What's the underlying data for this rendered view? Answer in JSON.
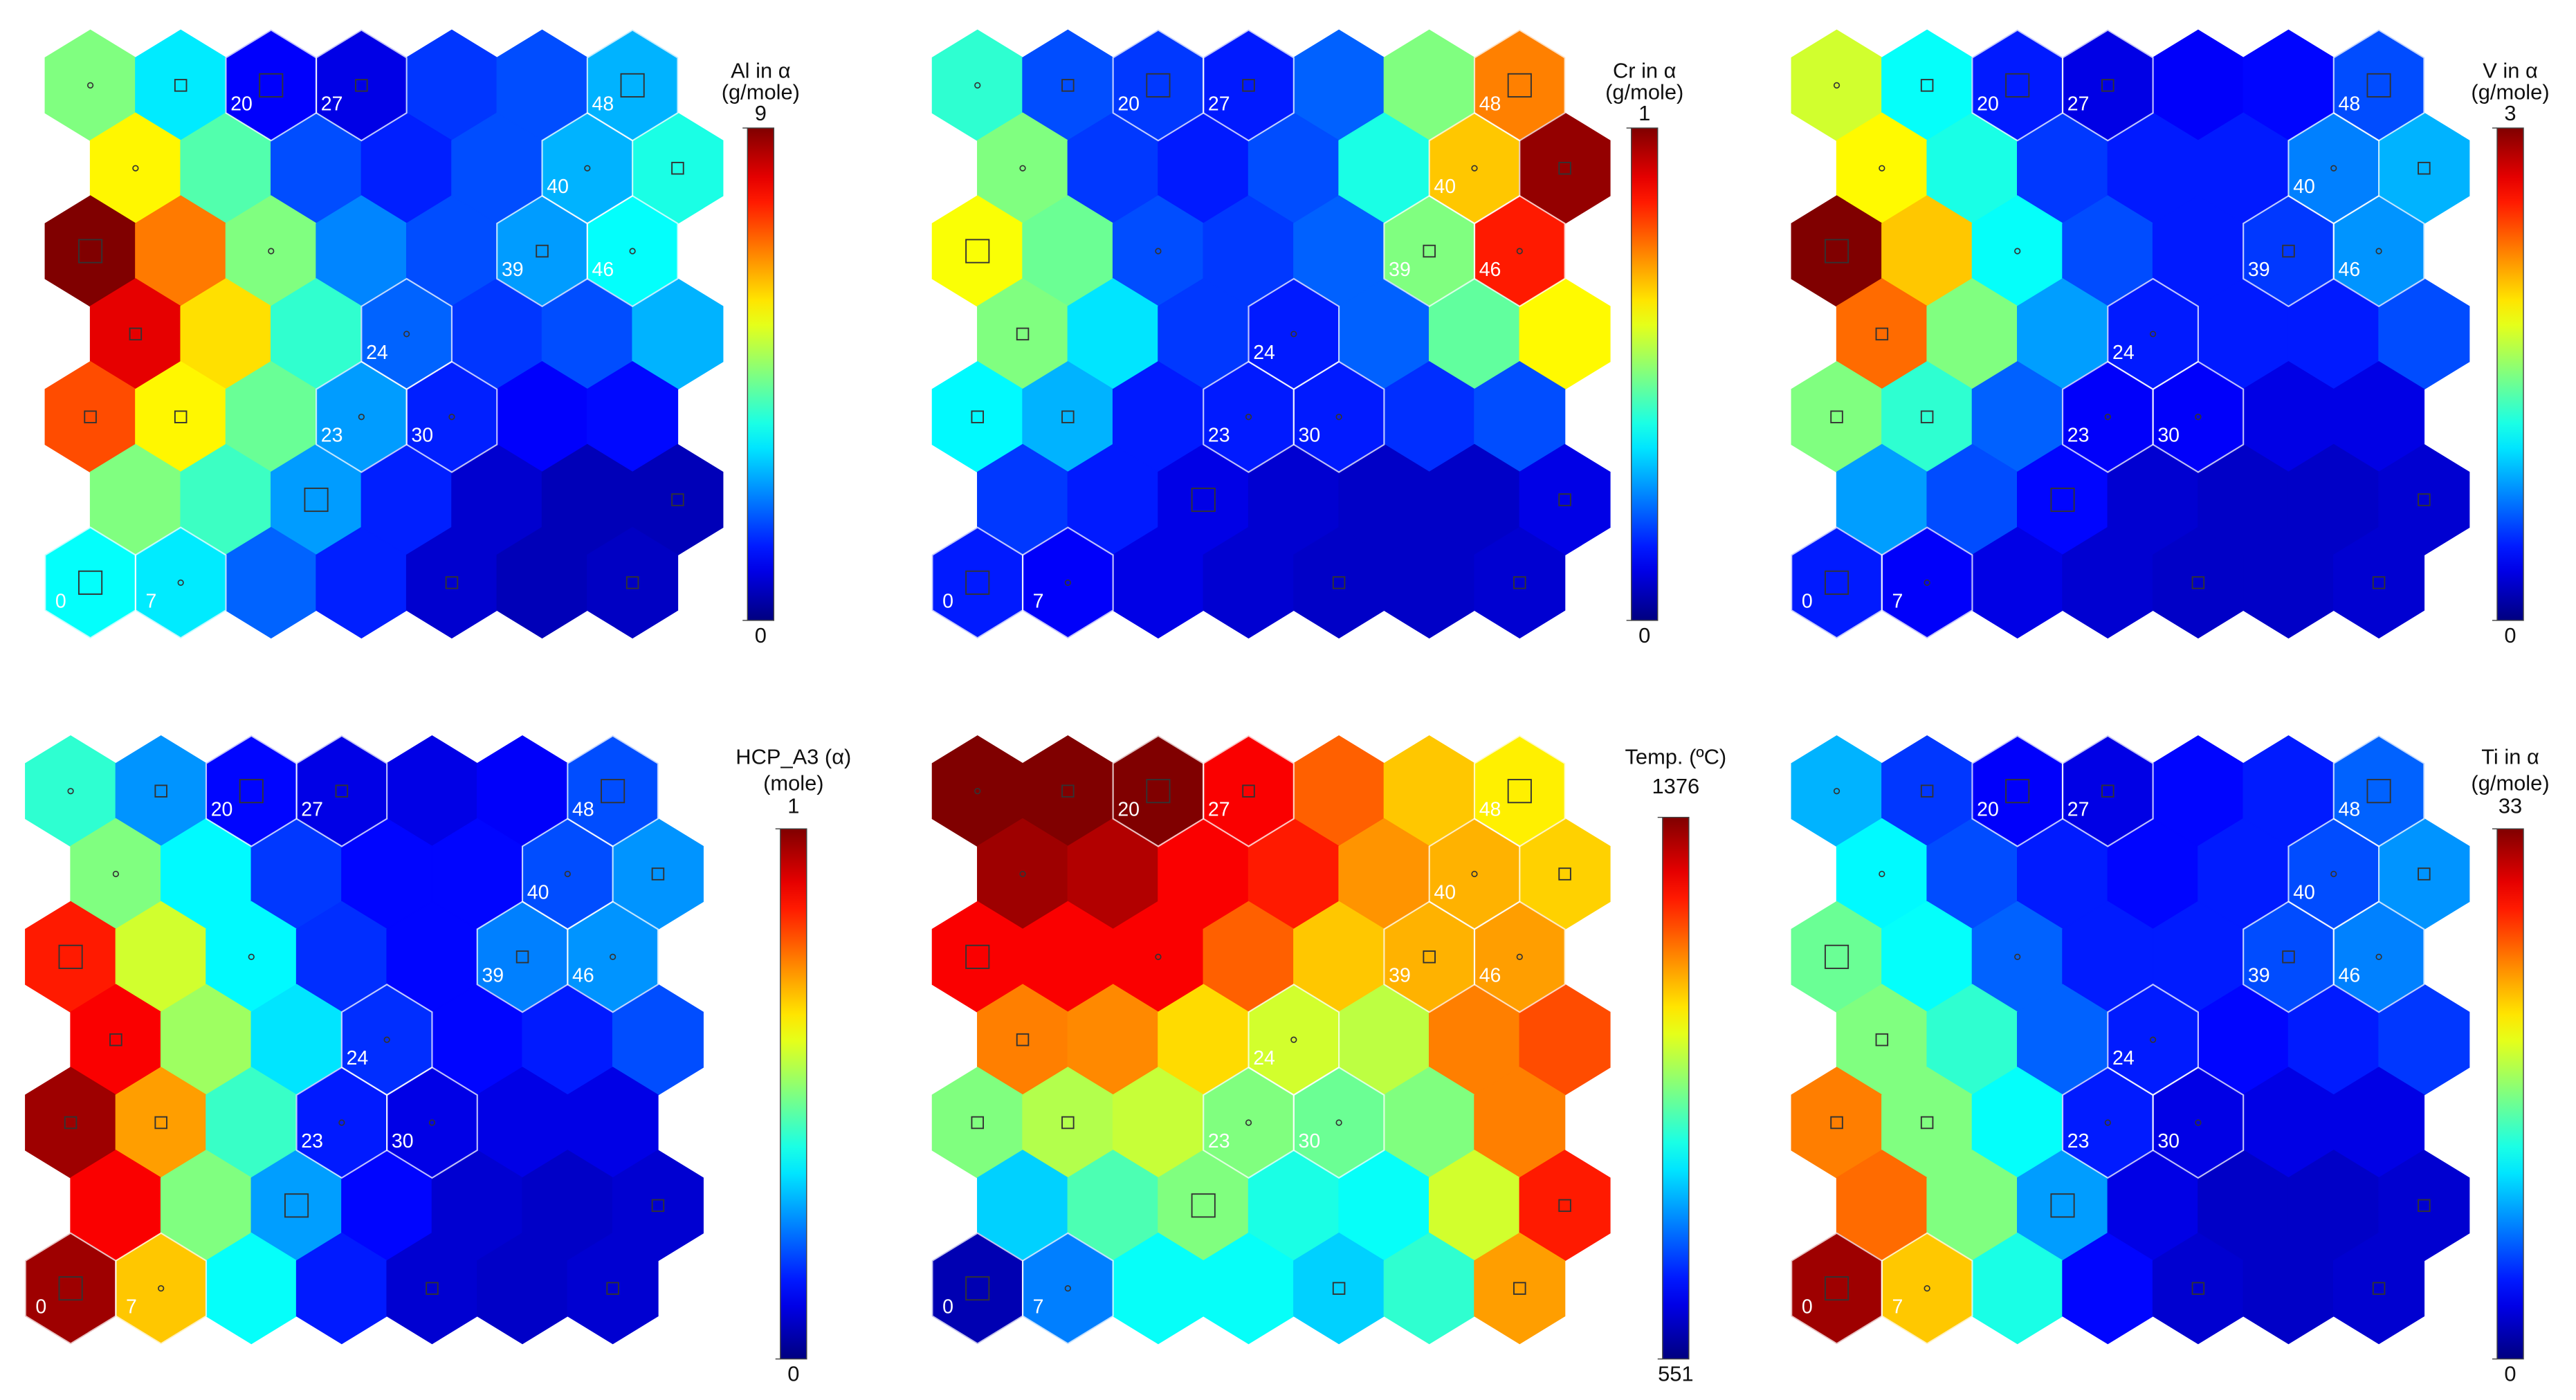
{
  "som": {
    "node_labels": [
      [
        null,
        null,
        "20",
        "27",
        null,
        null,
        "48"
      ],
      [
        null,
        null,
        null,
        null,
        null,
        "40",
        null
      ],
      [
        null,
        null,
        null,
        null,
        null,
        "39",
        "46"
      ],
      [
        null,
        null,
        null,
        "24",
        null,
        null,
        null
      ],
      [
        null,
        null,
        null,
        "23",
        "30",
        null,
        null
      ],
      [
        null,
        null,
        null,
        null,
        null,
        null,
        null
      ],
      [
        "0",
        "7",
        null,
        null,
        null,
        null,
        null
      ]
    ],
    "hits": [
      [
        1,
        2,
        3,
        2,
        0,
        0,
        3
      ],
      [
        1,
        0,
        0,
        0,
        0,
        1,
        2
      ],
      [
        3,
        0,
        1,
        0,
        0,
        2,
        1
      ],
      [
        2,
        0,
        0,
        1,
        0,
        0,
        0
      ],
      [
        2,
        2,
        0,
        1,
        1,
        0,
        0
      ],
      [
        0,
        0,
        3,
        0,
        0,
        0,
        2
      ],
      [
        3,
        1,
        0,
        0,
        2,
        0,
        2
      ]
    ]
  },
  "chart_data": [
    {
      "type": "hexmap",
      "title": [
        "Al in α",
        "(g/mole)"
      ],
      "colormap": "jet",
      "clim": [
        0,
        9
      ],
      "cticks": [
        0,
        9
      ],
      "values": [
        [
          4.5,
          3.2,
          1.1,
          0.9,
          1.6,
          1.8,
          2.7
        ],
        [
          5.7,
          4.1,
          1.8,
          1.4,
          1.8,
          2.7,
          3.6
        ],
        [
          9,
          6.8,
          4.5,
          2.3,
          1.8,
          2.5,
          3.4
        ],
        [
          8.1,
          5.9,
          3.8,
          2,
          1.6,
          1.8,
          2.7
        ],
        [
          7.2,
          5.7,
          4.3,
          2.5,
          1.4,
          1.1,
          1.2
        ],
        [
          4.5,
          3.9,
          2.5,
          1.4,
          0.7,
          0.5,
          0.5
        ],
        [
          3.4,
          3.2,
          2,
          1.4,
          0.7,
          0.5,
          0.6
        ]
      ]
    },
    {
      "type": "hexmap",
      "title": [
        "Cr in α",
        "(g/mole)"
      ],
      "colormap": "jet",
      "clim": [
        0,
        1
      ],
      "cticks": [
        0,
        1
      ],
      "values": [
        [
          0.42,
          0.2,
          0.18,
          0.15,
          0.22,
          0.5,
          0.75
        ],
        [
          0.5,
          0.18,
          0.15,
          0.2,
          0.4,
          0.68,
          0.98
        ],
        [
          0.62,
          0.48,
          0.2,
          0.18,
          0.22,
          0.5,
          0.85
        ],
        [
          0.5,
          0.35,
          0.18,
          0.15,
          0.22,
          0.47,
          0.63
        ],
        [
          0.37,
          0.3,
          0.15,
          0.15,
          0.15,
          0.17,
          0.2
        ],
        [
          0.18,
          0.15,
          0.1,
          0.08,
          0.07,
          0.07,
          0.1
        ],
        [
          0.15,
          0.12,
          0.1,
          0.08,
          0.07,
          0.07,
          0.08
        ]
      ]
    },
    {
      "type": "hexmap",
      "title": [
        "V in α",
        "(g/mole)"
      ],
      "colormap": "jet",
      "clim": [
        0,
        3
      ],
      "cticks": [
        0,
        3
      ],
      "values": [
        [
          1.74,
          1.14,
          0.45,
          0.3,
          0.36,
          0.39,
          0.6
        ],
        [
          1.89,
          1.2,
          0.54,
          0.45,
          0.45,
          0.75,
          0.9
        ],
        [
          3,
          2.04,
          1.14,
          0.6,
          0.45,
          0.54,
          0.81
        ],
        [
          2.31,
          1.5,
          0.84,
          0.45,
          0.45,
          0.45,
          0.6
        ],
        [
          1.5,
          1.26,
          0.66,
          0.36,
          0.36,
          0.3,
          0.3
        ],
        [
          0.84,
          0.6,
          0.39,
          0.24,
          0.21,
          0.21,
          0.24
        ],
        [
          0.45,
          0.36,
          0.3,
          0.24,
          0.21,
          0.21,
          0.24
        ]
      ]
    },
    {
      "type": "hexmap",
      "title": [
        "HCP_A3 (α)",
        "(mole)"
      ],
      "colormap": "jet",
      "clim": [
        0,
        1
      ],
      "cticks": [
        0,
        1
      ],
      "values": [
        [
          0.42,
          0.27,
          0.13,
          0.1,
          0.1,
          0.12,
          0.2
        ],
        [
          0.5,
          0.37,
          0.18,
          0.13,
          0.13,
          0.2,
          0.27
        ],
        [
          0.85,
          0.58,
          0.37,
          0.17,
          0.13,
          0.25,
          0.27
        ],
        [
          0.88,
          0.53,
          0.35,
          0.17,
          0.13,
          0.15,
          0.2
        ],
        [
          0.97,
          0.72,
          0.43,
          0.15,
          0.1,
          0.1,
          0.1
        ],
        [
          0.88,
          0.5,
          0.28,
          0.13,
          0.08,
          0.07,
          0.08
        ],
        [
          0.97,
          0.68,
          0.38,
          0.15,
          0.08,
          0.07,
          0.08
        ]
      ]
    },
    {
      "type": "hexmap",
      "title": [
        "Temp. (ºC)"
      ],
      "colormap": "jet",
      "clim": [
        551,
        1376
      ],
      "cticks": [
        551,
        1376
      ],
      "values": [
        [
          1376,
          1376,
          1376,
          1277,
          1195,
          1112,
          1079
        ],
        [
          1351,
          1335,
          1277,
          1252,
          1153,
          1129,
          1104
        ],
        [
          1277,
          1277,
          1277,
          1195,
          1112,
          1129,
          1145
        ],
        [
          1170,
          1162,
          1096,
          1030,
          1013,
          1170,
          1211
        ],
        [
          964,
          1005,
          1021,
          964,
          947,
          964,
          1170
        ],
        [
          823,
          922,
          964,
          881,
          865,
          1030,
          1252
        ],
        [
          592,
          757,
          865,
          865,
          823,
          898,
          1145
        ]
      ]
    },
    {
      "type": "hexmap",
      "title": [
        "Ti in α",
        "(g/mole)"
      ],
      "colormap": "jet",
      "clim": [
        0,
        33
      ],
      "cticks": [
        0,
        33
      ],
      "values": [
        [
          9.9,
          5.9,
          4,
          3.3,
          4.3,
          5,
          7.3
        ],
        [
          12.2,
          6.6,
          5,
          4.3,
          5,
          6.6,
          8.9
        ],
        [
          15.8,
          12.5,
          7.3,
          5,
          5,
          6.6,
          8.3
        ],
        [
          16.5,
          13.9,
          7.3,
          5,
          4.3,
          5,
          5.9
        ],
        [
          24.8,
          16.5,
          12.5,
          5,
          3.3,
          3.3,
          3.3
        ],
        [
          25.4,
          16.5,
          9.2,
          3.3,
          2.3,
          2.3,
          2.6
        ],
        [
          32,
          22.4,
          13.2,
          4.3,
          2.6,
          2.3,
          2.6
        ]
      ]
    }
  ]
}
